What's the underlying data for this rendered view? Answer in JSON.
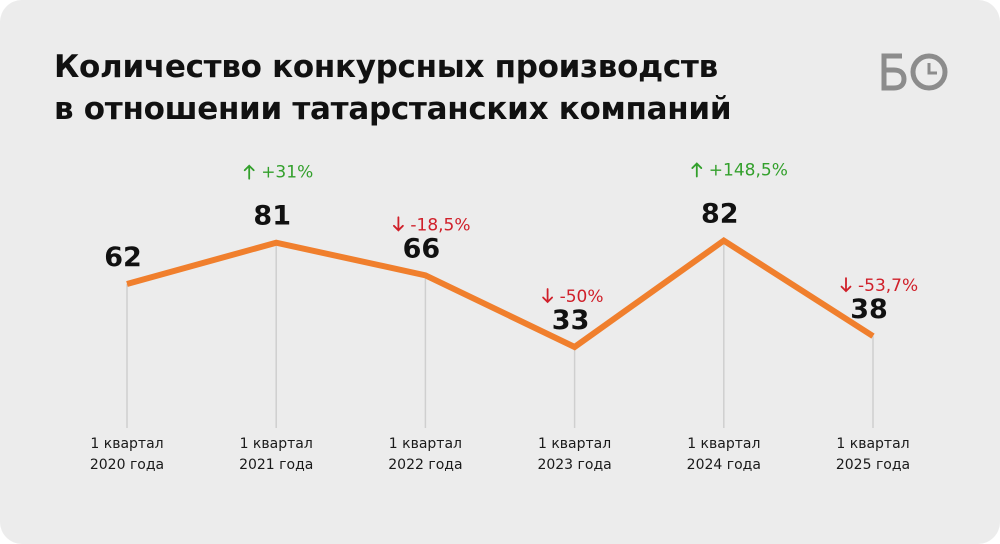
{
  "title": {
    "line1": "Количество конкурсных производств",
    "line2": "в отношении татарстанских компаний"
  },
  "logo": {
    "text": "БО",
    "icon": "clock-icon"
  },
  "colors": {
    "line": "#f07f2d",
    "up": "#33a02c",
    "down": "#d0202a",
    "background": "#ececec"
  },
  "chart_data": {
    "type": "line",
    "title": "Количество конкурсных производств в отношении татарстанских компаний",
    "categories": [
      [
        "1 квартал",
        "2020 года"
      ],
      [
        "1 квартал",
        "2021 года"
      ],
      [
        "1 квартал",
        "2022 года"
      ],
      [
        "1 квартал",
        "2023 года"
      ],
      [
        "1 квартал",
        "2024 года"
      ],
      [
        "1 квартал",
        "2025 года"
      ]
    ],
    "values": [
      62,
      81,
      66,
      33,
      82,
      38
    ],
    "changes": [
      null,
      {
        "direction": "up",
        "text": "+31%"
      },
      {
        "direction": "down",
        "text": "-18,5%"
      },
      {
        "direction": "down",
        "text": "-50%"
      },
      {
        "direction": "up",
        "text": "+148,5%"
      },
      {
        "direction": "down",
        "text": "-53,7%"
      }
    ],
    "grid": false,
    "yaxis_visible": false
  }
}
